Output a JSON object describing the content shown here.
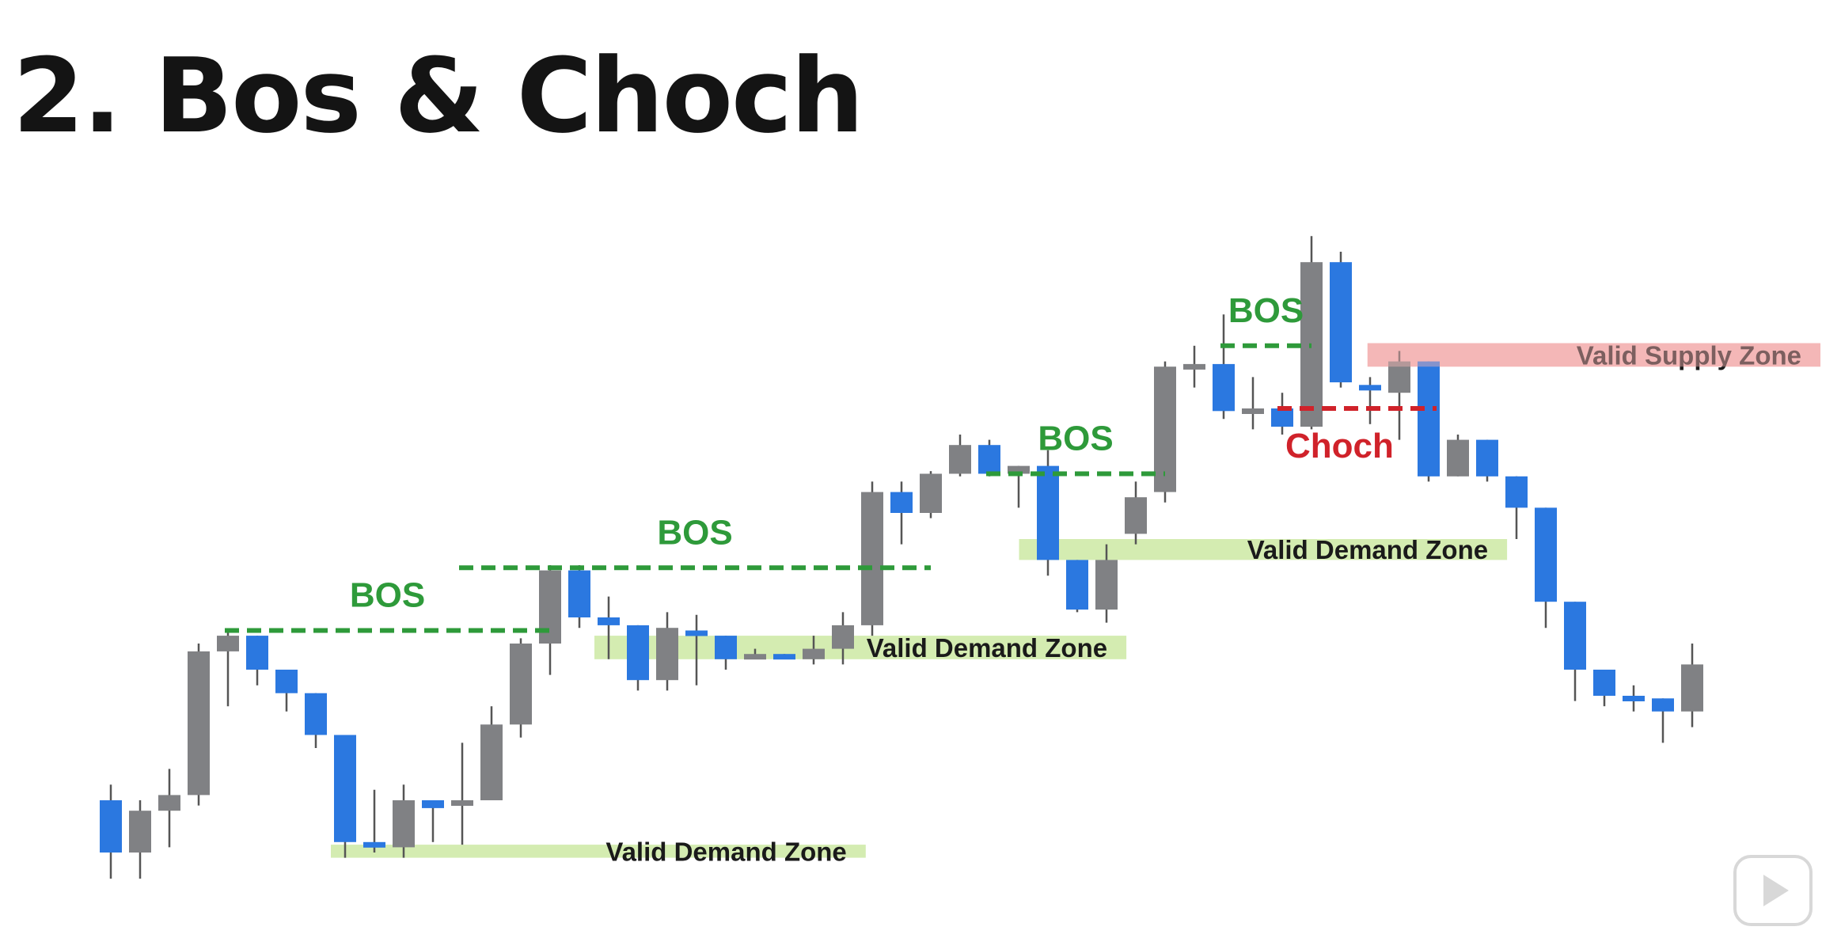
{
  "title": "2. Bos & Choch",
  "colors": {
    "bullish": "#2b78e0",
    "bearish": "#808184",
    "wick": "#555555",
    "bos": "#2e9a3a",
    "choch": "#d0222a",
    "demand_zone": "#cfeaa8",
    "supply_zone": "#f4b3b3"
  },
  "chart_data": {
    "type": "candlestick",
    "title": "",
    "xlabel": "",
    "ylabel": "",
    "ylim": [
      0,
      100
    ],
    "grid": false,
    "candles": [
      {
        "i": 0,
        "open": 5,
        "high": 18,
        "low": 0,
        "close": 15,
        "dir": "up"
      },
      {
        "i": 1,
        "open": 13,
        "high": 15,
        "low": 0,
        "close": 5,
        "dir": "down"
      },
      {
        "i": 2,
        "open": 13,
        "high": 21,
        "low": 6,
        "close": 16,
        "dir": "down"
      },
      {
        "i": 3,
        "open": 16,
        "high": 45,
        "low": 14,
        "close": 43.5,
        "dir": "down"
      },
      {
        "i": 4,
        "open": 43.5,
        "high": 47.5,
        "low": 33,
        "close": 46.5,
        "dir": "down"
      },
      {
        "i": 5,
        "open": 46.5,
        "high": 46.5,
        "low": 37,
        "close": 40,
        "dir": "up"
      },
      {
        "i": 6,
        "open": 40,
        "high": 40,
        "low": 32,
        "close": 35.5,
        "dir": "up"
      },
      {
        "i": 7,
        "open": 35.5,
        "high": 35.5,
        "low": 25,
        "close": 27.5,
        "dir": "up"
      },
      {
        "i": 8,
        "open": 27.5,
        "high": 27.5,
        "low": 4,
        "close": 7,
        "dir": "up"
      },
      {
        "i": 9,
        "open": 7,
        "high": 17,
        "low": 5,
        "close": 6,
        "dir": "up"
      },
      {
        "i": 10,
        "open": 6,
        "high": 18,
        "low": 4,
        "close": 15,
        "dir": "down"
      },
      {
        "i": 11,
        "open": 15,
        "high": 15,
        "low": 7,
        "close": 13.5,
        "dir": "up"
      },
      {
        "i": 12,
        "open": 14,
        "high": 26,
        "low": 6.5,
        "close": 15,
        "dir": "down"
      },
      {
        "i": 13,
        "open": 15,
        "high": 33,
        "low": 15,
        "close": 29.5,
        "dir": "down"
      },
      {
        "i": 14,
        "open": 29.5,
        "high": 46,
        "low": 27,
        "close": 45,
        "dir": "down"
      },
      {
        "i": 15,
        "open": 45,
        "high": 60,
        "low": 39,
        "close": 59,
        "dir": "down"
      },
      {
        "i": 16,
        "open": 59,
        "high": 60,
        "low": 48,
        "close": 50,
        "dir": "up"
      },
      {
        "i": 17,
        "open": 50,
        "high": 54,
        "low": 42,
        "close": 48.5,
        "dir": "up"
      },
      {
        "i": 18,
        "open": 48.5,
        "high": 48.5,
        "low": 36,
        "close": 38,
        "dir": "up"
      },
      {
        "i": 19,
        "open": 38,
        "high": 51,
        "low": 36,
        "close": 48,
        "dir": "down"
      },
      {
        "i": 20,
        "open": 47,
        "high": 50.5,
        "low": 37,
        "close": 47.5,
        "dir": "up"
      },
      {
        "i": 21,
        "open": 46.5,
        "high": 46.5,
        "low": 40,
        "close": 42,
        "dir": "up"
      },
      {
        "i": 22,
        "open": 42,
        "high": 44,
        "low": 42,
        "close": 43,
        "dir": "down"
      },
      {
        "i": 23,
        "open": 43,
        "high": 43,
        "low": 42,
        "close": 42.5,
        "dir": "up"
      },
      {
        "i": 24,
        "open": 42,
        "high": 46.5,
        "low": 41,
        "close": 44,
        "dir": "down"
      },
      {
        "i": 25,
        "open": 44,
        "high": 51,
        "low": 41,
        "close": 48.5,
        "dir": "down"
      },
      {
        "i": 26,
        "open": 48.5,
        "high": 76,
        "low": 46.5,
        "close": 74,
        "dir": "down"
      },
      {
        "i": 27,
        "open": 74,
        "high": 76,
        "low": 64,
        "close": 70,
        "dir": "up"
      },
      {
        "i": 28,
        "open": 70,
        "high": 78,
        "low": 69,
        "close": 77.5,
        "dir": "down"
      },
      {
        "i": 29,
        "open": 77.5,
        "high": 85,
        "low": 77,
        "close": 83,
        "dir": "down"
      },
      {
        "i": 30,
        "open": 83,
        "high": 84,
        "low": 77,
        "close": 77.5,
        "dir": "up"
      },
      {
        "i": 31,
        "open": 77.5,
        "high": 79,
        "low": 71,
        "close": 79,
        "dir": "down"
      },
      {
        "i": 32,
        "open": 79,
        "high": 82,
        "low": 58,
        "close": 61,
        "dir": "up"
      },
      {
        "i": 33,
        "open": 61,
        "high": 61,
        "low": 51,
        "close": 51.5,
        "dir": "up"
      },
      {
        "i": 34,
        "open": 51.5,
        "high": 64,
        "low": 49,
        "close": 61,
        "dir": "down"
      },
      {
        "i": 35,
        "open": 66,
        "high": 76,
        "low": 64,
        "close": 73,
        "dir": "down"
      },
      {
        "i": 36,
        "open": 74,
        "high": 99,
        "low": 72,
        "close": 98,
        "dir": "down"
      },
      {
        "i": 37,
        "open": 98,
        "high": 102,
        "low": 94,
        "close": 98.5,
        "dir": "down"
      },
      {
        "i": 38,
        "open": 98.5,
        "high": 108,
        "low": 88,
        "close": 89.5,
        "dir": "up"
      },
      {
        "i": 39,
        "open": 89.5,
        "high": 96,
        "low": 86,
        "close": 90,
        "dir": "down"
      },
      {
        "i": 40,
        "open": 90,
        "high": 93,
        "low": 85,
        "close": 86.5,
        "dir": "up"
      },
      {
        "i": 41,
        "open": 86.5,
        "high": 123,
        "low": 86,
        "close": 118,
        "dir": "down"
      },
      {
        "i": 42,
        "open": 118,
        "high": 120,
        "low": 94,
        "close": 95,
        "dir": "up"
      },
      {
        "i": 43,
        "open": 94.5,
        "high": 96,
        "low": 87,
        "close": 93.5,
        "dir": "up"
      },
      {
        "i": 44,
        "open": 93,
        "high": 101,
        "low": 84,
        "close": 99,
        "dir": "down"
      },
      {
        "i": 45,
        "open": 99,
        "high": 99,
        "low": 76,
        "close": 77,
        "dir": "up"
      },
      {
        "i": 46,
        "open": 77,
        "high": 85,
        "low": 77,
        "close": 84,
        "dir": "down"
      },
      {
        "i": 47,
        "open": 84,
        "high": 84,
        "low": 76,
        "close": 77,
        "dir": "up"
      },
      {
        "i": 48,
        "open": 77,
        "high": 77,
        "low": 65,
        "close": 71,
        "dir": "up"
      },
      {
        "i": 49,
        "open": 71,
        "high": 71,
        "low": 48,
        "close": 53,
        "dir": "up"
      },
      {
        "i": 50,
        "open": 53,
        "high": 53,
        "low": 34,
        "close": 40,
        "dir": "up"
      },
      {
        "i": 51,
        "open": 40,
        "high": 40,
        "low": 33,
        "close": 35,
        "dir": "up"
      },
      {
        "i": 52,
        "open": 35,
        "high": 37,
        "low": 32,
        "close": 34.5,
        "dir": "up"
      },
      {
        "i": 53,
        "open": 34.5,
        "high": 34.5,
        "low": 26,
        "close": 32,
        "dir": "up"
      },
      {
        "i": 54,
        "open": 32,
        "high": 45,
        "low": 29,
        "close": 41,
        "dir": "down"
      }
    ],
    "bos_levels": [
      {
        "label": "BOS",
        "price": 47.5,
        "from": 4,
        "to": 15
      },
      {
        "label": "BOS",
        "price": 59.5,
        "from": 12,
        "to": 28
      },
      {
        "label": "BOS",
        "price": 77.5,
        "from": 30,
        "to": 36
      },
      {
        "label": "BOS",
        "price": 102,
        "from": 38,
        "to": 41
      }
    ],
    "choch": {
      "label": "Choch",
      "price": 90,
      "from": 40,
      "to": 45
    },
    "zones": [
      {
        "type": "demand",
        "label": "Valid Demand Zone",
        "top": 6.5,
        "bottom": 4,
        "from": 8,
        "to": 25.4
      },
      {
        "type": "demand",
        "label": "Valid Demand Zone",
        "top": 46.5,
        "bottom": 42,
        "from": 17,
        "to": 34.3
      },
      {
        "type": "demand",
        "label": "Valid Demand Zone",
        "top": 65,
        "bottom": 61,
        "from": 31.5,
        "to": 47.3
      },
      {
        "type": "supply",
        "label": "Valid Supply Zone",
        "top": 102.5,
        "bottom": 98,
        "from": 43.4,
        "to": 58
      }
    ]
  }
}
